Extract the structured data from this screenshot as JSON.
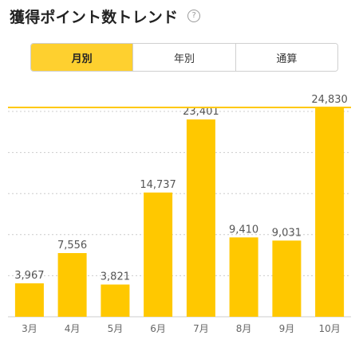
{
  "header": {
    "title": "獲得ポイント数トレンド",
    "help_icon": "question-circle-icon"
  },
  "tabs": [
    {
      "label": "月別",
      "active": true
    },
    {
      "label": "年別",
      "active": false
    },
    {
      "label": "通算",
      "active": false
    }
  ],
  "colors": {
    "bar": "#ffc800",
    "active_tab": "#fed02f",
    "grid": "#cccccc",
    "axis_text": "#666666"
  },
  "chart_data": {
    "type": "bar",
    "categories": [
      "3月",
      "4月",
      "5月",
      "6月",
      "7月",
      "8月",
      "9月",
      "10月"
    ],
    "values": [
      3967,
      7556,
      3821,
      14737,
      23401,
      9410,
      9031,
      24830
    ],
    "value_labels": [
      "3,967",
      "7,556",
      "3,821",
      "14,737",
      "23,401",
      "9,410",
      "9,031",
      "24,830"
    ],
    "ylim": [
      0,
      27000
    ],
    "grid": true,
    "reference_line": 24830
  }
}
